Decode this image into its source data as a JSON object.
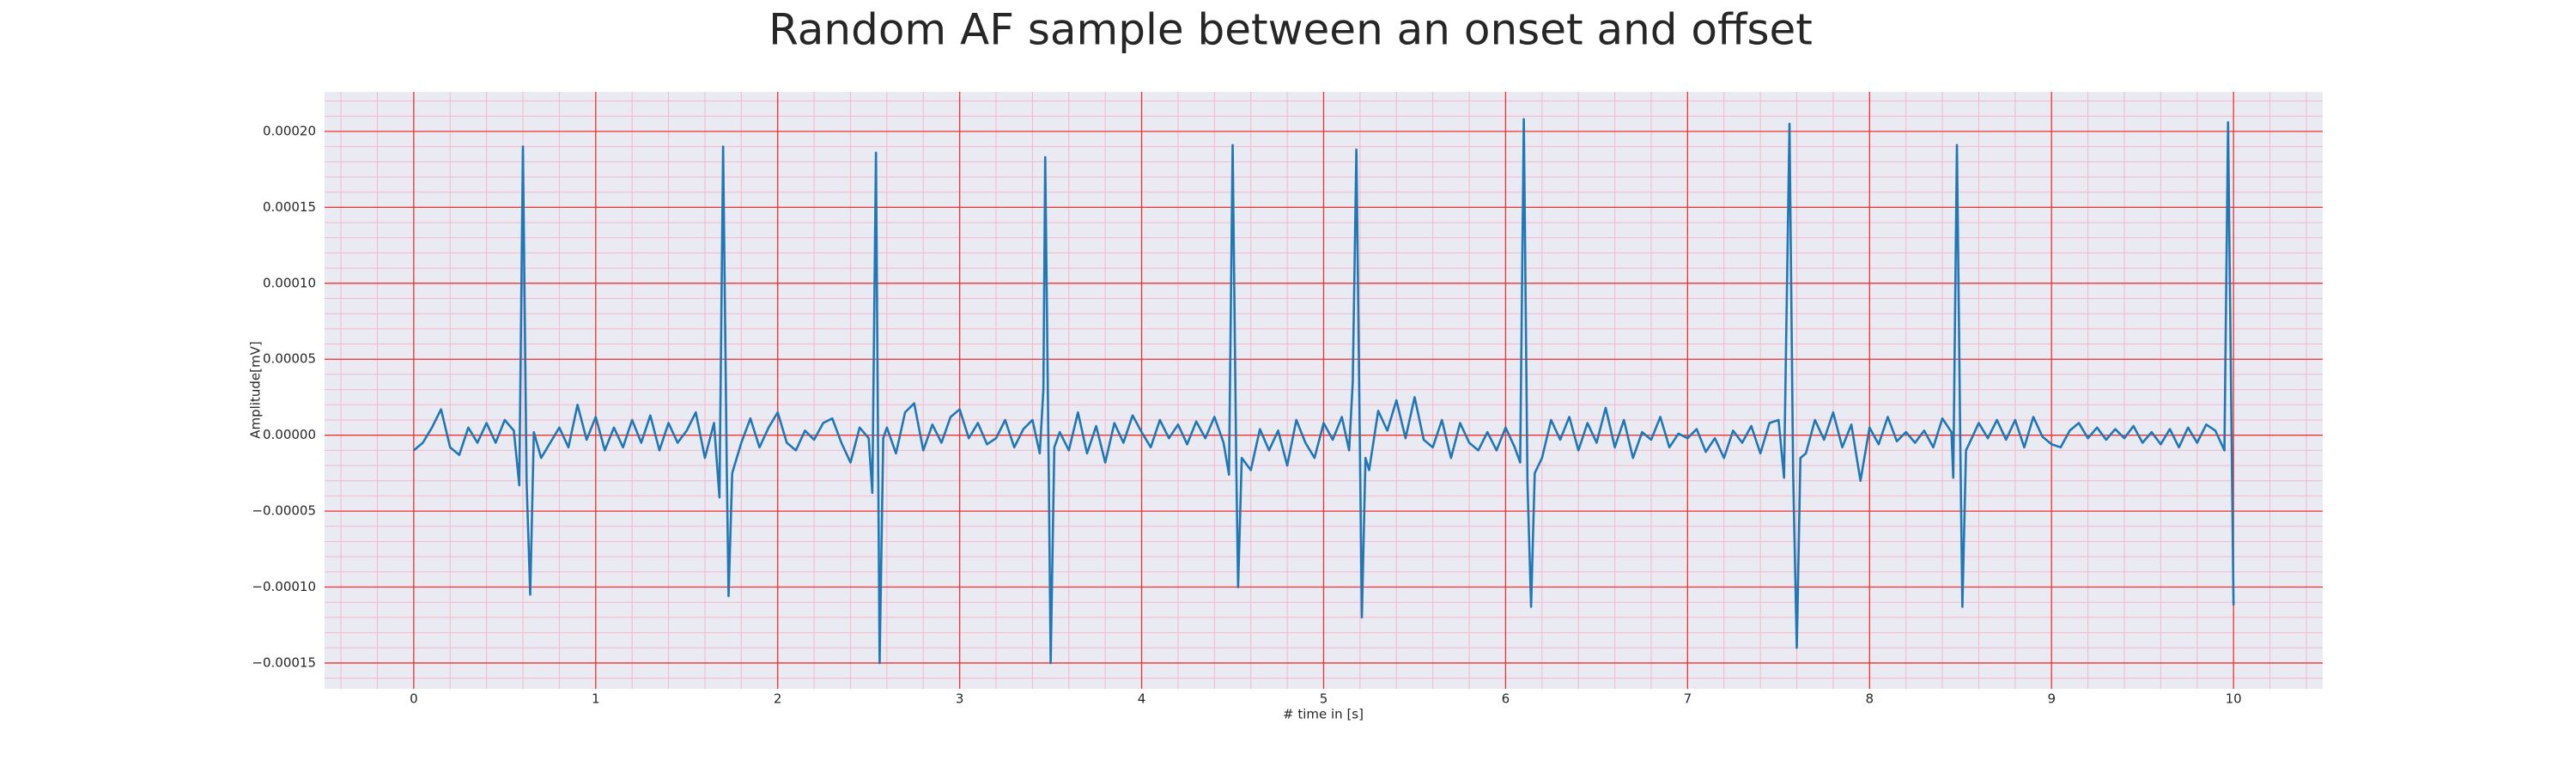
{
  "chart_data": {
    "type": "line",
    "title": "Random AF sample between an onset and offset",
    "xlabel": "# time in [s]",
    "ylabel": "Amplitude[mV]",
    "background": "#eaeaf2",
    "grid": true,
    "grid_color": "#ee3333",
    "minor_grid": true,
    "minor_grid_color": "#f4b8c8",
    "minor_divisions": 5,
    "xlim": [
      -0.49,
      10.49
    ],
    "xticks": [
      0,
      1,
      2,
      3,
      4,
      5,
      6,
      7,
      8,
      9,
      10
    ],
    "ylim": [
      -0.000167,
      0.000226
    ],
    "yticks": [
      {
        "value": -0.00015,
        "label": "−0.00015"
      },
      {
        "value": -0.0001,
        "label": "−0.00010"
      },
      {
        "value": -5e-05,
        "label": "−0.00005"
      },
      {
        "value": 0,
        "label": "0.00000"
      },
      {
        "value": 5e-05,
        "label": "0.00005"
      },
      {
        "value": 0.0001,
        "label": "0.00010"
      },
      {
        "value": 0.00015,
        "label": "0.00015"
      },
      {
        "value": 0.0002,
        "label": "0.00020"
      }
    ],
    "x": [
      0,
      0.05,
      0.1,
      0.15,
      0.2,
      0.25,
      0.3,
      0.35,
      0.4,
      0.45,
      0.5,
      0.55,
      0.58,
      0.6,
      0.62,
      0.64,
      0.66,
      0.7,
      0.75,
      0.8,
      0.85,
      0.9,
      0.95,
      1.0,
      1.05,
      1.1,
      1.15,
      1.2,
      1.25,
      1.3,
      1.35,
      1.4,
      1.45,
      1.5,
      1.55,
      1.6,
      1.65,
      1.68,
      1.7,
      1.72,
      1.73,
      1.75,
      1.8,
      1.85,
      1.9,
      1.95,
      2.0,
      2.05,
      2.1,
      2.15,
      2.2,
      2.25,
      2.3,
      2.35,
      2.4,
      2.45,
      2.5,
      2.52,
      2.54,
      2.56,
      2.58,
      2.6,
      2.65,
      2.7,
      2.75,
      2.8,
      2.85,
      2.9,
      2.95,
      3.0,
      3.05,
      3.1,
      3.15,
      3.2,
      3.25,
      3.3,
      3.35,
      3.4,
      3.44,
      3.46,
      3.47,
      3.49,
      3.5,
      3.52,
      3.55,
      3.6,
      3.65,
      3.7,
      3.75,
      3.8,
      3.85,
      3.9,
      3.95,
      4.0,
      4.05,
      4.1,
      4.15,
      4.2,
      4.25,
      4.3,
      4.35,
      4.4,
      4.45,
      4.48,
      4.5,
      4.52,
      4.53,
      4.55,
      4.6,
      4.65,
      4.7,
      4.75,
      4.8,
      4.85,
      4.9,
      4.95,
      5.0,
      5.05,
      5.1,
      5.14,
      5.16,
      5.18,
      5.2,
      5.21,
      5.23,
      5.25,
      5.3,
      5.35,
      5.4,
      5.45,
      5.5,
      5.55,
      5.6,
      5.65,
      5.7,
      5.75,
      5.8,
      5.85,
      5.9,
      5.95,
      6.0,
      6.05,
      6.08,
      6.1,
      6.12,
      6.14,
      6.16,
      6.2,
      6.25,
      6.3,
      6.35,
      6.4,
      6.45,
      6.5,
      6.55,
      6.6,
      6.65,
      6.7,
      6.75,
      6.8,
      6.85,
      6.9,
      6.95,
      7.0,
      7.05,
      7.1,
      7.15,
      7.2,
      7.25,
      7.3,
      7.35,
      7.4,
      7.45,
      7.5,
      7.53,
      7.56,
      7.58,
      7.6,
      7.62,
      7.65,
      7.7,
      7.75,
      7.8,
      7.85,
      7.9,
      7.95,
      8.0,
      8.05,
      8.1,
      8.15,
      8.2,
      8.25,
      8.3,
      8.35,
      8.4,
      8.45,
      8.46,
      8.48,
      8.5,
      8.51,
      8.53,
      8.55,
      8.6,
      8.65,
      8.7,
      8.75,
      8.8,
      8.85,
      8.9,
      8.95,
      9.0,
      9.05,
      9.1,
      9.15,
      9.2,
      9.25,
      9.3,
      9.35,
      9.4,
      9.45,
      9.5,
      9.55,
      9.6,
      9.65,
      9.7,
      9.75,
      9.8,
      9.85,
      9.9,
      9.95,
      9.97,
      10.0
    ],
    "series": [
      {
        "color": "#1f77b4",
        "values": [
          -1e-05,
          -5e-06,
          5e-06,
          1.7e-05,
          -8e-06,
          -1.3e-05,
          5e-06,
          -5e-06,
          8e-06,
          -5e-06,
          1e-05,
          3e-06,
          -3.3e-05,
          0.00019,
          -3e-05,
          -0.000105,
          2e-06,
          -1.5e-05,
          -5e-06,
          5e-06,
          -8e-06,
          2e-05,
          -3e-06,
          1.2e-05,
          -1e-05,
          5e-06,
          -8e-06,
          1e-05,
          -5e-06,
          1.3e-05,
          -1e-05,
          8e-06,
          -5e-06,
          3e-06,
          1.5e-05,
          -1.5e-05,
          8e-06,
          -4.1e-05,
          0.00019,
          -2e-05,
          -0.000106,
          -2.5e-05,
          -5e-06,
          1.1e-05,
          -8e-06,
          5e-06,
          1.5e-05,
          -5e-06,
          -1e-05,
          3e-06,
          -3e-06,
          8e-06,
          1.1e-05,
          -5e-06,
          -1.8e-05,
          5e-06,
          -2e-06,
          -3.8e-05,
          0.000186,
          -0.00015,
          -2e-06,
          5e-06,
          -1.2e-05,
          1.5e-05,
          2.1e-05,
          -1e-05,
          7e-06,
          -5e-06,
          1.2e-05,
          1.7e-05,
          -2e-06,
          8e-06,
          -6e-06,
          -2e-06,
          1e-05,
          -8e-06,
          4e-06,
          1e-05,
          -1.2e-05,
          3e-05,
          0.000183,
          -3e-05,
          -0.00015,
          -8e-06,
          2e-06,
          -1e-05,
          1.5e-05,
          -1.2e-05,
          6e-06,
          -1.8e-05,
          8e-06,
          -5e-06,
          1.3e-05,
          2e-06,
          -8e-06,
          1e-05,
          -2e-06,
          7e-06,
          -6e-06,
          9e-06,
          -2e-06,
          1.2e-05,
          -5e-06,
          -2.6e-05,
          0.000191,
          -2e-05,
          -0.0001,
          -1.5e-05,
          -2.3e-05,
          4e-06,
          -1e-05,
          3e-06,
          -2e-05,
          1e-05,
          -5e-06,
          -1.5e-05,
          8e-06,
          -3e-06,
          1.2e-05,
          -1e-05,
          3.5e-05,
          0.000188,
          -1.5e-05,
          -0.00012,
          -1.5e-05,
          -2.3e-05,
          1.6e-05,
          3e-06,
          2.3e-05,
          -2e-06,
          2.5e-05,
          -3e-06,
          -8e-06,
          1e-05,
          -1.5e-05,
          8e-06,
          -5e-06,
          -1e-05,
          2e-06,
          -1e-05,
          5e-06,
          -8e-06,
          -1.8e-05,
          0.000208,
          -3e-05,
          -0.000113,
          -2.5e-05,
          -1.5e-05,
          1e-05,
          -3e-06,
          1.2e-05,
          -1e-05,
          8e-06,
          -5e-06,
          1.8e-05,
          -8e-06,
          1e-05,
          -1.5e-05,
          2e-06,
          -3e-06,
          1.2e-05,
          -8e-06,
          1e-06,
          -2e-06,
          4e-06,
          -1.1e-05,
          -2e-06,
          -1.5e-05,
          3e-06,
          -5e-06,
          6e-06,
          -1.2e-05,
          8e-06,
          1e-05,
          -2.8e-05,
          0.000205,
          -2.5e-05,
          -0.00014,
          -1.5e-05,
          -1.2e-05,
          1e-05,
          -3e-06,
          1.5e-05,
          -8e-06,
          7e-06,
          -3e-05,
          5e-06,
          -6e-06,
          1.2e-05,
          -4e-06,
          2e-06,
          -5e-06,
          3e-06,
          -8e-06,
          1.1e-05,
          2e-06,
          -2.8e-05,
          0.000191,
          -2e-05,
          -0.000113,
          -1e-05,
          -5e-06,
          8e-06,
          -2e-06,
          1e-05,
          -3e-06,
          1e-05,
          -8e-06,
          1.2e-05,
          -1e-06,
          -6e-06,
          -8e-06,
          3e-06,
          8e-06,
          -2e-06,
          5e-06,
          -3e-06,
          4e-06,
          -2e-06,
          6e-06,
          -5e-06,
          2e-06,
          -6e-06,
          4e-06,
          -8e-06,
          5e-06,
          -5e-06,
          7e-06,
          3e-06,
          -1e-05,
          0.000206,
          -0.000112
        ]
      }
    ]
  }
}
